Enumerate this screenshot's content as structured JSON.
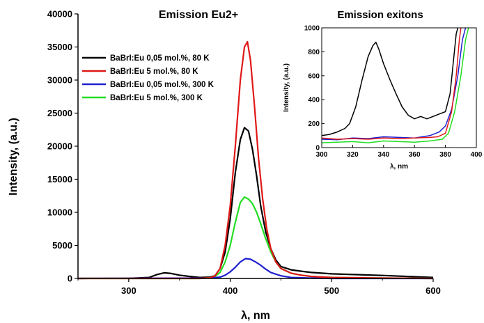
{
  "chart_data": [
    {
      "type": "line",
      "title": "Emission Eu2+",
      "xlabel": "λ, nm",
      "ylabel": "Intensity, (a.u.)",
      "xlim": [
        250,
        600
      ],
      "ylim": [
        0,
        40000
      ],
      "x_ticks": [
        "300",
        "400",
        "500",
        "600"
      ],
      "y_ticks": [
        "0",
        "5000",
        "10000",
        "15000",
        "20000",
        "25000",
        "30000",
        "35000",
        "40000"
      ],
      "legend": "top-left",
      "series": [
        {
          "name": "BaBrI:Eu 0,05 mol.%, 80 K",
          "color": "#000000",
          "x": [
            250,
            300,
            320,
            328,
            335,
            342,
            350,
            360,
            370,
            380,
            385,
            390,
            395,
            400,
            405,
            410,
            414,
            418,
            422,
            426,
            430,
            435,
            440,
            445,
            450,
            460,
            470,
            480,
            500,
            550,
            600
          ],
          "y": [
            0,
            20,
            150,
            600,
            850,
            750,
            500,
            300,
            150,
            200,
            400,
            1500,
            4000,
            9000,
            16000,
            21000,
            22800,
            22300,
            19500,
            15500,
            11000,
            7000,
            4500,
            2800,
            1800,
            1300,
            1100,
            900,
            700,
            450,
            150
          ]
        },
        {
          "name": "BaBrI:Eu 5 mol.%, 80 K",
          "color": "#e01818",
          "x": [
            250,
            370,
            380,
            385,
            390,
            395,
            400,
            405,
            410,
            414,
            417,
            420,
            424,
            428,
            432,
            436,
            440,
            445,
            450,
            460,
            470,
            480,
            500,
            550,
            600
          ],
          "y": [
            0,
            0,
            100,
            400,
            1500,
            5000,
            11000,
            20000,
            30000,
            35000,
            35800,
            33000,
            26000,
            18000,
            12000,
            7500,
            4500,
            2500,
            1500,
            800,
            500,
            300,
            150,
            50,
            0
          ]
        },
        {
          "name": "BaBrI:Eu 0,05 mol.%, 300 K",
          "color": "#2020d0",
          "x": [
            250,
            380,
            390,
            395,
            400,
            405,
            410,
            415,
            420,
            425,
            430,
            435,
            440,
            450,
            460,
            480,
            500,
            600
          ],
          "y": [
            0,
            50,
            200,
            500,
            1000,
            1700,
            2500,
            3000,
            2900,
            2500,
            2000,
            1400,
            900,
            400,
            150,
            50,
            0,
            0
          ]
        },
        {
          "name": "BaBrI:Eu 5 mol.%, 300 K",
          "color": "#22dd22",
          "x": [
            250,
            370,
            380,
            385,
            390,
            395,
            400,
            405,
            410,
            414,
            418,
            422,
            426,
            430,
            435,
            440,
            445,
            450,
            460,
            470,
            480,
            500,
            550,
            600
          ],
          "y": [
            0,
            0,
            100,
            300,
            900,
            2500,
            5000,
            8500,
            11500,
            12300,
            12000,
            11300,
            10000,
            8300,
            6000,
            4000,
            2500,
            1500,
            800,
            500,
            300,
            150,
            50,
            0
          ]
        }
      ]
    },
    {
      "type": "line",
      "title": "Emission exitons",
      "xlabel": "λ, nm",
      "ylabel": "Intensity, (a.u.)",
      "xlim": [
        300,
        400
      ],
      "ylim": [
        0,
        1000
      ],
      "x_ticks": [
        "300",
        "320",
        "340",
        "360",
        "380",
        "400"
      ],
      "y_ticks": [
        "0",
        "200",
        "400",
        "600",
        "800",
        "1000"
      ],
      "series": [
        {
          "name": "BaBrI:Eu 0,05 mol.%, 80 K",
          "color": "#000000",
          "x": [
            300,
            305,
            310,
            315,
            318,
            322,
            326,
            330,
            333,
            335,
            337,
            340,
            344,
            348,
            352,
            356,
            360,
            364,
            368,
            372,
            376,
            380,
            383,
            385,
            387,
            388
          ],
          "y": [
            100,
            110,
            130,
            160,
            200,
            340,
            560,
            760,
            850,
            880,
            820,
            700,
            570,
            450,
            340,
            270,
            240,
            260,
            240,
            260,
            280,
            300,
            450,
            700,
            950,
            1000
          ]
        },
        {
          "name": "BaBrI:Eu 5 mol.%, 80 K",
          "color": "#e01818",
          "x": [
            300,
            310,
            320,
            330,
            340,
            350,
            360,
            370,
            375,
            380,
            384,
            387,
            389,
            390
          ],
          "y": [
            80,
            70,
            75,
            70,
            80,
            75,
            80,
            85,
            90,
            120,
            300,
            600,
            900,
            1000
          ]
        },
        {
          "name": "BaBrI:Eu 0,05 mol.%, 300 K",
          "color": "#2020d0",
          "x": [
            300,
            310,
            320,
            330,
            340,
            350,
            360,
            370,
            376,
            380,
            384,
            388,
            391,
            393
          ],
          "y": [
            70,
            65,
            80,
            75,
            90,
            85,
            80,
            100,
            130,
            180,
            320,
            600,
            900,
            1000
          ]
        },
        {
          "name": "BaBrI:Eu 5 mol.%, 300 K",
          "color": "#22dd22",
          "x": [
            300,
            310,
            320,
            330,
            340,
            350,
            360,
            370,
            378,
            382,
            386,
            390,
            393,
            395
          ],
          "y": [
            40,
            45,
            50,
            40,
            55,
            50,
            45,
            55,
            70,
            120,
            300,
            600,
            900,
            1000
          ]
        }
      ]
    }
  ]
}
